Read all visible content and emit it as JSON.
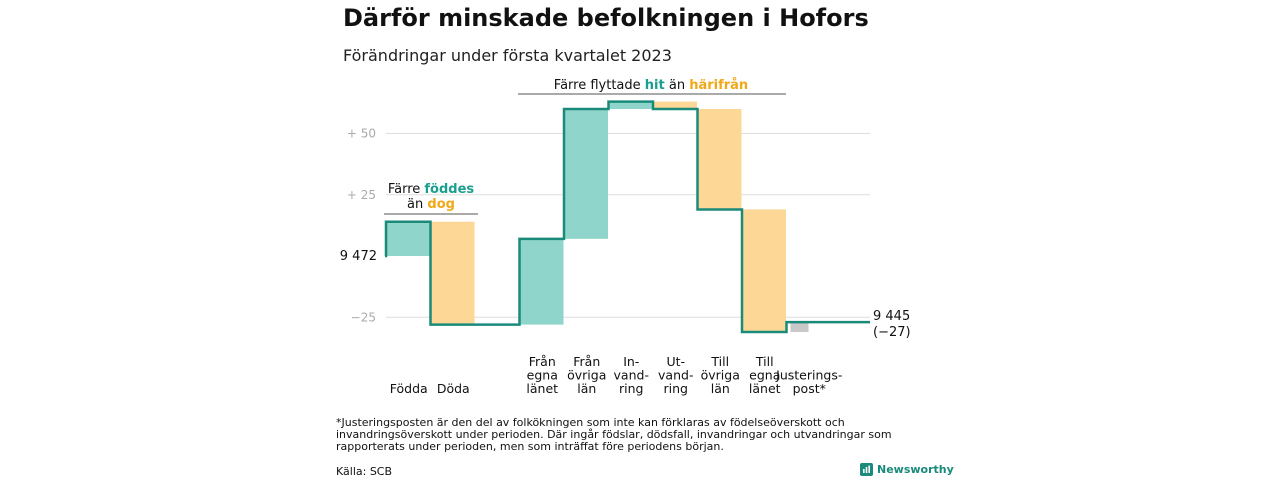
{
  "chart_data": {
    "type": "waterfall",
    "title": "Därför minskade befolkningen i Hofors",
    "subtitle": "Förändringar under första kvartalet 2023",
    "start_label": "9 472",
    "start_value": 9472,
    "end_label": "9 445",
    "end_change_label": "(−27)",
    "end_value": 9445,
    "yticks": [
      {
        "label": "+ 50",
        "value": 50
      },
      {
        "label": "+ 25",
        "value": 25
      },
      {
        "label": "−25",
        "value": -25
      }
    ],
    "steps": [
      {
        "lines": [
          "Födda"
        ],
        "value": 14,
        "kind": "in"
      },
      {
        "lines": [
          "Döda"
        ],
        "value": -42,
        "kind": "out"
      },
      {
        "lines": [
          "Från",
          "egna",
          "länet"
        ],
        "value": 35,
        "kind": "in"
      },
      {
        "lines": [
          "Från",
          "övriga",
          "län"
        ],
        "value": 53,
        "kind": "in"
      },
      {
        "lines": [
          "In-",
          "vand-",
          "ring"
        ],
        "value": 3,
        "kind": "in"
      },
      {
        "lines": [
          "Ut-",
          "vand-",
          "ring"
        ],
        "value": -3,
        "kind": "out"
      },
      {
        "lines": [
          "Till",
          "övriga",
          "län"
        ],
        "value": -41,
        "kind": "out"
      },
      {
        "lines": [
          "Till",
          "egna",
          "länet"
        ],
        "value": -50,
        "kind": "out"
      },
      {
        "lines": [
          "Justerings-",
          "post*"
        ],
        "value": 4,
        "kind": "adj"
      }
    ],
    "annotations": {
      "births": {
        "line1": "Färre",
        "line1_highlight": "föddes",
        "line2": "än",
        "line2_highlight": "dog"
      },
      "migration": {
        "text": "Färre flyttade",
        "highlight1": "hit",
        "middle": "än",
        "highlight2": "härifrån"
      }
    },
    "colors": {
      "line": "#1a8a7a",
      "in": "#8fd5cb",
      "out": "#fcd795",
      "adj": "#c8c8c8",
      "highlight_in": "#1a9e8f",
      "highlight_out": "#f0a818",
      "grid": "#dddddd"
    }
  },
  "footnote": "*Justeringsposten är den del av folkökningen som inte kan förklaras av födelseöverskott och invandringsöverskott under perioden. Där ingår födslar, dödsfall, invandringar och utvandringar som rapporterats under perioden, men som inträffat före periodens början.",
  "source": "Källa: SCB",
  "brand": {
    "name": "Newsworthy",
    "icon": "newsworthy-logo-icon"
  }
}
